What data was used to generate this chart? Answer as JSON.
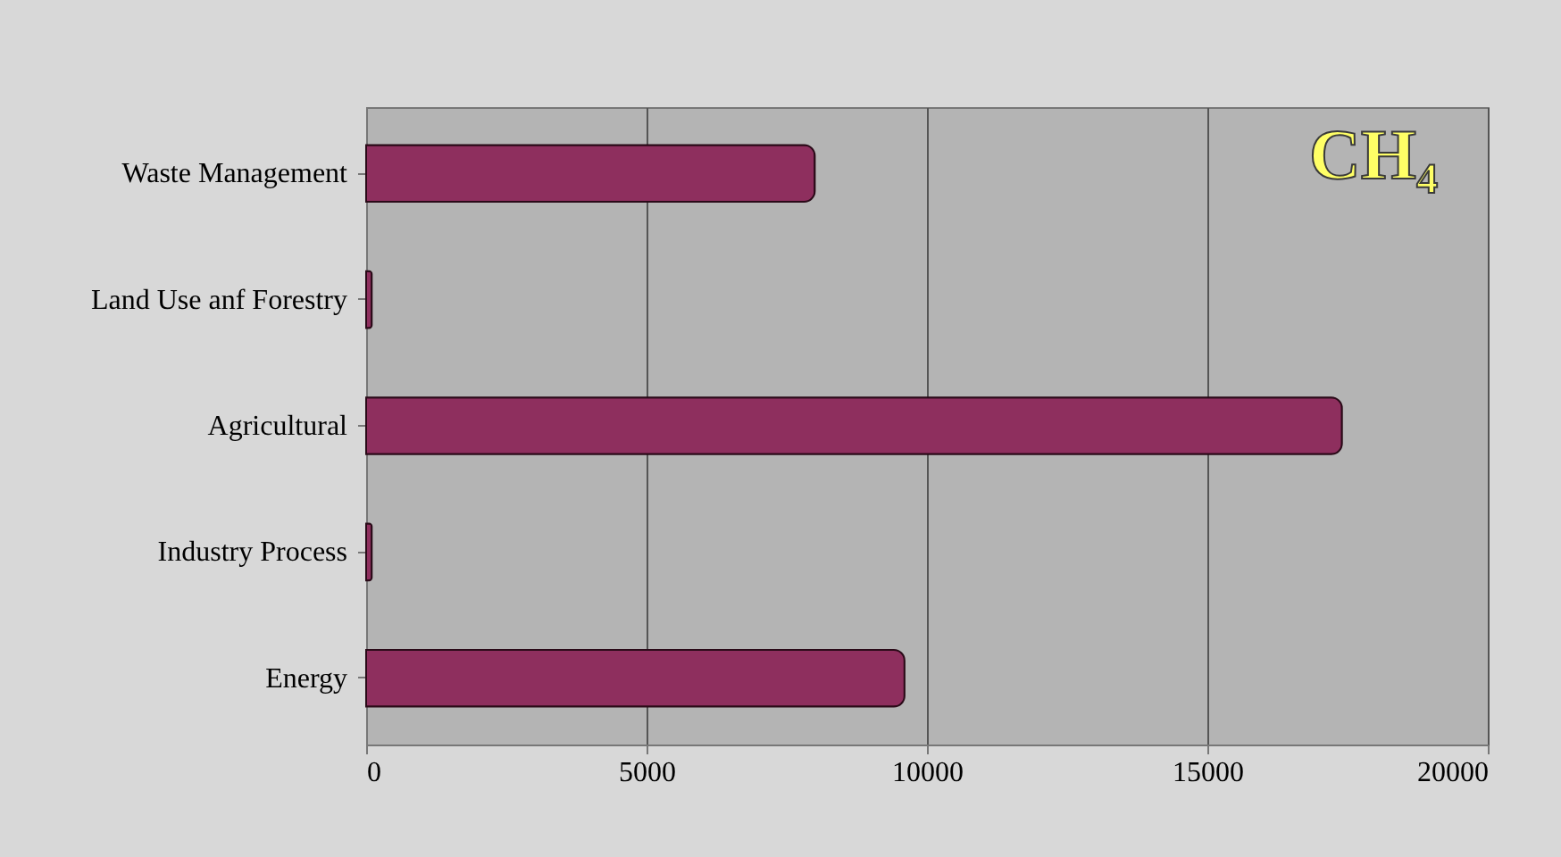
{
  "chart_data": {
    "type": "bar",
    "orientation": "horizontal",
    "title": "CH₄",
    "categories": [
      "Waste Management",
      "Land Use anf Forestry",
      "Agricultural",
      "Industry Process",
      "Energy"
    ],
    "values": [
      8000,
      100,
      17400,
      100,
      9600
    ],
    "color": "#8e2f5e",
    "xlim": [
      0,
      20000
    ],
    "xticks": [
      0,
      5000,
      10000,
      15000,
      20000
    ],
    "grid": "x"
  }
}
